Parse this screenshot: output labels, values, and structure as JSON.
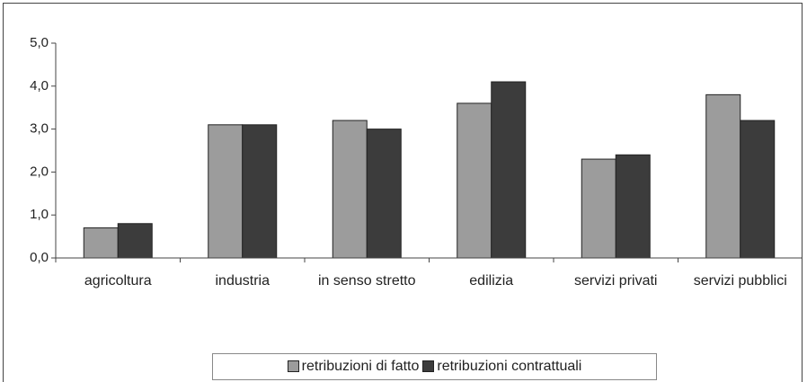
{
  "chart_data": {
    "type": "bar",
    "categories": [
      "agricoltura",
      "industria",
      "in senso stretto",
      "edilizia",
      "servizi privati",
      "servizi pubblici"
    ],
    "series": [
      {
        "name": "retribuzioni di fatto",
        "color": "#9c9c9c",
        "values": [
          0.7,
          3.1,
          3.2,
          3.6,
          2.3,
          3.8
        ]
      },
      {
        "name": "retribuzioni contrattuali",
        "color": "#3c3c3c",
        "values": [
          0.8,
          3.1,
          3.0,
          4.1,
          2.4,
          3.2
        ]
      }
    ],
    "ylim": [
      0,
      5
    ],
    "yticks": [
      {
        "value": 0,
        "label": "0,0"
      },
      {
        "value": 1,
        "label": "1,0"
      },
      {
        "value": 2,
        "label": "2,0"
      },
      {
        "value": 3,
        "label": "3,0"
      },
      {
        "value": 4,
        "label": "4,0"
      },
      {
        "value": 5,
        "label": "5,0"
      }
    ],
    "grid": false,
    "legend": "bottom"
  }
}
